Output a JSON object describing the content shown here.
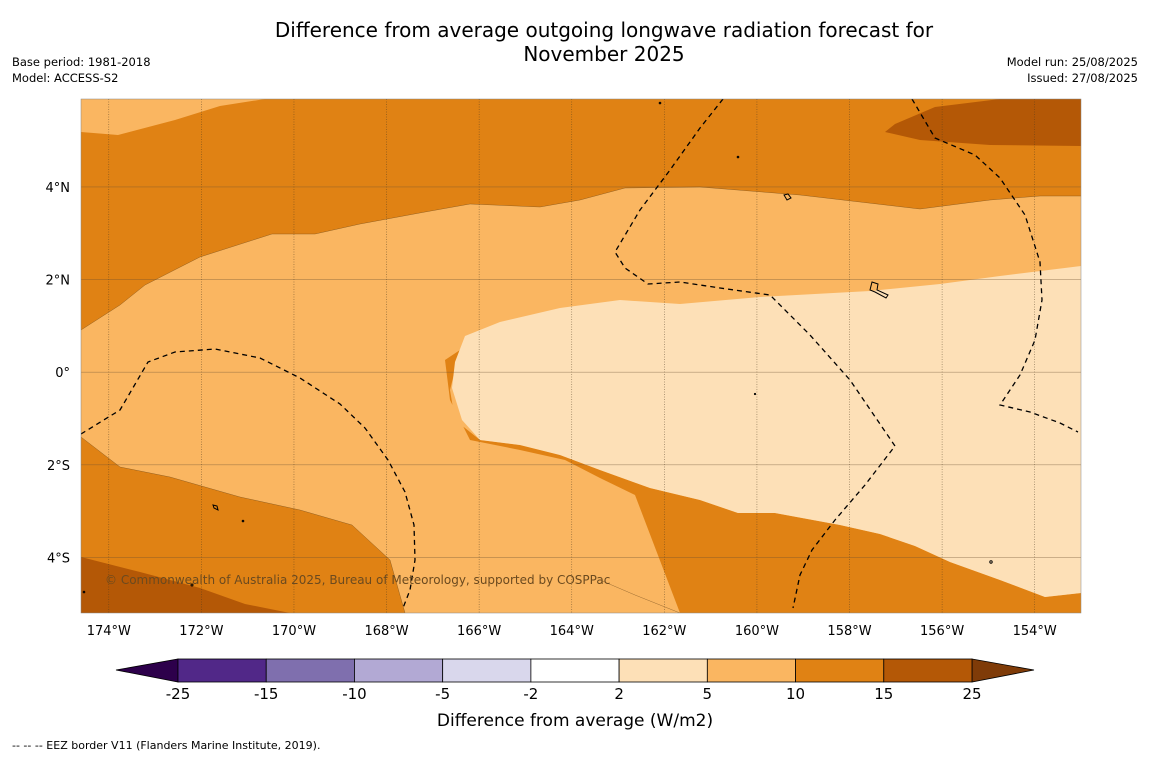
{
  "title_line1": "Difference from average outgoing longwave radiation forecast for",
  "title_line2": "November 2025",
  "base_period": "Base period: 1981-2018",
  "model": "Model: ACCESS-S2",
  "model_run": "Model run: 25/08/2025",
  "issued": "Issued: 27/08/2025",
  "copyright": "© Commonwealth of Australia 2025, Bureau of Meteorology, supported by COSPPac",
  "footnote": "--  --  -- EEZ border V11 (Flanders Marine Institute, 2019).",
  "map": {
    "lon_min": -174.6,
    "lon_max": -153.0,
    "lat_min": -5.2,
    "lat_max": 5.9,
    "lon_ticks": [
      -174,
      -172,
      -170,
      -168,
      -166,
      -164,
      -162,
      -160,
      -158,
      -156,
      -154
    ],
    "lon_labels": [
      "174°W",
      "172°W",
      "170°W",
      "168°W",
      "166°W",
      "164°W",
      "162°W",
      "160°W",
      "158°W",
      "156°W",
      "154°W"
    ],
    "lat_ticks": [
      4,
      2,
      0,
      -2,
      -4
    ],
    "lat_labels": [
      "4°N",
      "2°N",
      "0°",
      "2°S",
      "4°S"
    ]
  },
  "colorbar": {
    "label": "Difference from average (W/m2)",
    "ticks": [
      "-25",
      "-15",
      "-10",
      "-5",
      "-2",
      "2",
      "5",
      "10",
      "15",
      "25"
    ],
    "colors": [
      "#512888",
      "#7f6fae",
      "#b2a9d4",
      "#d9d7ec",
      "#ffffff",
      "#fde0b7",
      "#fab661",
      "#e08214",
      "#b45806"
    ],
    "under_color": "#2d004b",
    "over_color": "#7f3b08"
  },
  "fill_colors": {
    "band_2_5": "#fde0b7",
    "band_5_10": "#fab661",
    "band_10_15": "#e08214",
    "band_15_25": "#b45806"
  }
}
